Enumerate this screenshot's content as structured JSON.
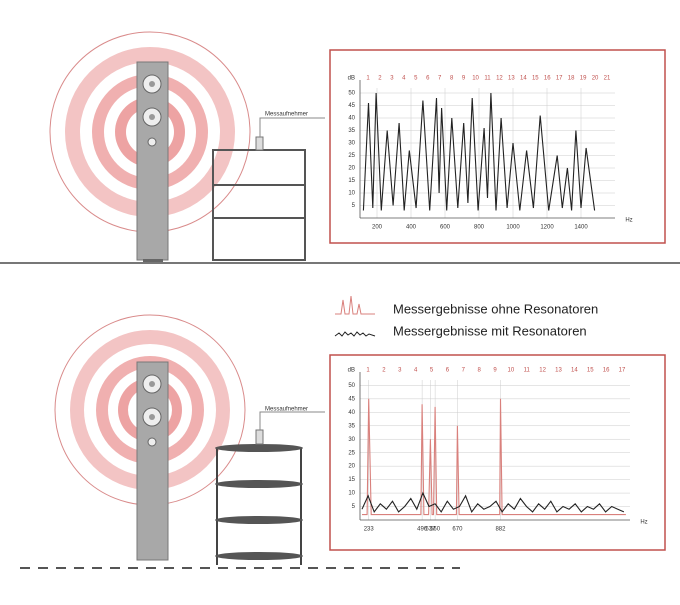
{
  "labels": {
    "mic_top": "Messaufnehmer",
    "mic_bottom": "Messaufnehmer"
  },
  "chart_data": [
    {
      "type": "line",
      "y_label": "dB",
      "x_label": "Hz",
      "grid": true,
      "xlim": [
        100,
        1600
      ],
      "xticks": [
        200,
        400,
        600,
        800,
        1000,
        1200,
        1400
      ],
      "ylim": [
        0,
        52
      ],
      "yticks": [
        5,
        10,
        15,
        20,
        25,
        30,
        35,
        40,
        45,
        50
      ],
      "annotations": [
        "1",
        "2",
        "3",
        "4",
        "5",
        "6",
        "7",
        "8",
        "9",
        "10",
        "11",
        "12",
        "13",
        "14",
        "15",
        "16",
        "17",
        "18",
        "19",
        "20",
        "21"
      ],
      "series": [
        {
          "name": null,
          "color": "#222222",
          "x": [
            120,
            150,
            175,
            195,
            225,
            260,
            295,
            330,
            360,
            390,
            430,
            470,
            510,
            550,
            565,
            580,
            610,
            640,
            675,
            710,
            735,
            760,
            795,
            830,
            850,
            870,
            900,
            930,
            965,
            1000,
            1040,
            1080,
            1120,
            1160,
            1210,
            1260,
            1290,
            1320,
            1345,
            1370,
            1400,
            1430,
            1480
          ],
          "values": [
            3,
            46,
            4,
            50,
            3,
            35,
            5,
            38,
            3,
            27,
            4,
            47,
            3,
            48,
            10,
            44,
            3,
            40,
            4,
            38,
            6,
            48,
            3,
            36,
            8,
            50,
            3,
            40,
            4,
            30,
            3,
            27,
            4,
            41,
            3,
            25,
            4,
            20,
            3,
            35,
            4,
            28,
            3
          ]
        }
      ]
    },
    {
      "type": "line",
      "y_label": "dB",
      "x_label": "Hz",
      "grid": true,
      "xlim": [
        190,
        1520
      ],
      "xticks": [
        233,
        496,
        537,
        560,
        670,
        882
      ],
      "xtick_color": "#c0504d",
      "ylim": [
        0,
        52
      ],
      "yticks": [
        5,
        10,
        15,
        20,
        25,
        30,
        35,
        40,
        45,
        50
      ],
      "annotations": [
        "1",
        "2",
        "3",
        "4",
        "5",
        "6",
        "7",
        "8",
        "9",
        "10",
        "11",
        "12",
        "13",
        "14",
        "15",
        "16",
        "17"
      ],
      "series": [
        {
          "name": "Messergebnisse ohne Resonatoren",
          "color": "#d9807c",
          "x": [
            200,
            225,
            233,
            245,
            470,
            490,
            496,
            505,
            528,
            537,
            545,
            552,
            560,
            568,
            650,
            665,
            670,
            678,
            870,
            878,
            882,
            890,
            1500
          ],
          "values": [
            2,
            2,
            45,
            2,
            2,
            2,
            43,
            2,
            2,
            30,
            2,
            2,
            42,
            2,
            2,
            2,
            35,
            2,
            2,
            2,
            45,
            2,
            2
          ]
        },
        {
          "name": "Messergebnisse mit Resonatoren",
          "color": "#222222",
          "x": [
            200,
            230,
            260,
            290,
            320,
            350,
            380,
            410,
            440,
            470,
            500,
            530,
            560,
            590,
            620,
            650,
            680,
            710,
            740,
            770,
            800,
            830,
            860,
            890,
            920,
            950,
            980,
            1010,
            1040,
            1070,
            1100,
            1130,
            1160,
            1190,
            1220,
            1250,
            1280,
            1310,
            1340,
            1370,
            1400,
            1430,
            1460,
            1490
          ],
          "values": [
            4,
            9,
            3,
            6,
            4,
            7,
            3,
            5,
            8,
            4,
            10,
            5,
            6,
            3,
            7,
            4,
            5,
            9,
            3,
            6,
            4,
            5,
            7,
            3,
            6,
            4,
            8,
            5,
            3,
            6,
            4,
            7,
            3,
            5,
            4,
            6,
            3,
            5,
            4,
            6,
            3,
            5,
            4,
            3
          ]
        }
      ]
    }
  ]
}
